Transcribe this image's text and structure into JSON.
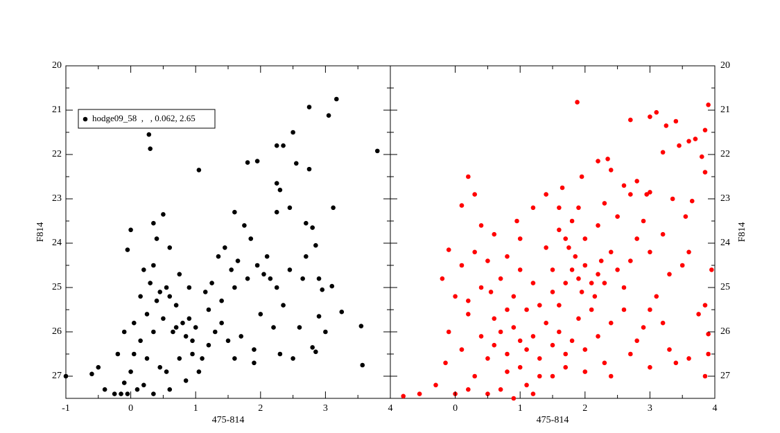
{
  "chart_data": [
    {
      "type": "scatter",
      "xlabel": "475-814",
      "ylabel": "F814",
      "yaxis_side": "left",
      "legend": "upper left",
      "xlim": [
        -1,
        4
      ],
      "ylim": [
        27.5,
        20
      ],
      "xticks": [
        -1,
        0,
        1,
        2,
        3,
        4
      ],
      "yticks": [
        20,
        21,
        22,
        23,
        24,
        25,
        26,
        27
      ],
      "series": [
        {
          "name": "hodge09_58  ,   , 0.062, 2.65",
          "color": "#000000",
          "x": [
            -1,
            0.28,
            0.3,
            1.05,
            2.75,
            3.05,
            3.17,
            3.8,
            2.5,
            2.25,
            2.35,
            2.55,
            1.8,
            1.95,
            2.75,
            2.25,
            2.3,
            3.12,
            2.45,
            2.25,
            1.6,
            0.5,
            0.35,
            0,
            -0.05,
            2.7,
            2.8,
            2.85,
            2.7,
            2.65,
            2.9,
            3.1,
            2.95,
            3.25,
            2.9,
            3,
            2.8,
            2.85,
            3.55,
            3.57,
            -0.6,
            -0.5,
            -0.4,
            -0.25,
            -0.15,
            -0.05,
            -0.1,
            0.1,
            0.2,
            0.35,
            0.6,
            0.2,
            0.3,
            0.45,
            0.55,
            0.4,
            0.6,
            0.25,
            0.5,
            0.7,
            0.8,
            0.9,
            1.0,
            0.85,
            0.65,
            0.35,
            0.15,
            0.05,
            0.25,
            0.45,
            0.55,
            0.75,
            0.95,
            1.1,
            1.2,
            1.3,
            1.4,
            1.5,
            1.7,
            1.9,
            1.35,
            1.45,
            1.55,
            1.65,
            1.75,
            1.85,
            1.95,
            2.05,
            2.15,
            2.25,
            2.35,
            2.1,
            1.8,
            1.6,
            1.4,
            1.2,
            2.0,
            2.2,
            1.9,
            2.3,
            0.35,
            0.4,
            0.6,
            0.75,
            0.9,
            0.15,
            0.05,
            -0.1,
            -0.2,
            0.0,
            2.5,
            2.6,
            2.45,
            1.6,
            1.05,
            0.85,
            1.15,
            1.25,
            0.7,
            0.95
          ],
          "y": [
            27,
            21.55,
            21.87,
            22.35,
            20.93,
            21.12,
            20.75,
            21.92,
            21.5,
            21.8,
            21.8,
            22.2,
            22.18,
            22.15,
            22.33,
            22.65,
            22.8,
            23.2,
            23.2,
            23.3,
            23.3,
            23.35,
            23.55,
            23.7,
            24.15,
            23.55,
            23.65,
            24.05,
            24.3,
            24.8,
            24.8,
            24.97,
            25.05,
            25.55,
            25.65,
            26,
            26.35,
            26.45,
            25.87,
            26.75,
            26.95,
            26.8,
            27.3,
            27.4,
            27.4,
            27.4,
            27.15,
            27.3,
            27.2,
            27.4,
            27.3,
            24.6,
            24.9,
            25.1,
            25.0,
            25.3,
            25.2,
            25.6,
            25.7,
            25.9,
            25.8,
            25.7,
            25.9,
            26.1,
            26.0,
            26.0,
            26.2,
            26.5,
            26.6,
            26.8,
            26.9,
            26.6,
            26.5,
            26.6,
            26.3,
            26.0,
            25.8,
            26.2,
            26.1,
            26.4,
            24.3,
            24.1,
            24.6,
            24.4,
            23.6,
            23.9,
            24.5,
            24.7,
            24.8,
            25.0,
            25.4,
            24.3,
            24.8,
            25.0,
            25.3,
            25.5,
            25.6,
            25.9,
            26.7,
            26.5,
            24.5,
            23.9,
            24.1,
            24.7,
            25.0,
            25.2,
            25.8,
            26.0,
            26.5,
            26.9,
            26.6,
            25.9,
            24.6,
            26.6,
            26.9,
            27.1,
            25.1,
            24.9,
            25.4,
            26.2
          ]
        }
      ]
    },
    {
      "type": "scatter",
      "xlabel": "475-814",
      "ylabel": "F814",
      "yaxis_side": "right",
      "xlim": [
        -1,
        4
      ],
      "ylim": [
        27.5,
        20
      ],
      "xticks": [
        0,
        1,
        2,
        3,
        4
      ],
      "yticks": [
        20,
        21,
        22,
        23,
        24,
        25,
        26,
        27
      ],
      "series": [
        {
          "color": "#ff0000",
          "x": [
            1.88,
            3.0,
            3.1,
            3.25,
            3.4,
            3.9,
            3.85,
            3.7,
            3.6,
            2.7,
            3.45,
            3.2,
            3.85,
            3.8,
            2.2,
            2.35,
            2.4,
            1.95,
            2.6,
            2.8,
            0.2,
            0.3,
            0.1,
            1.2,
            0.95,
            1.65,
            3.0,
            3.55,
            3.65,
            3.35,
            -0.55,
            -0.8,
            -0.3,
            -0.15,
            0.0,
            0.2,
            3.9,
            3.9,
            3.85,
            3.95,
            3.75,
            3.85,
            3.6,
            3.5,
            3.4,
            3.6,
            3.3,
            3.0,
            2.7,
            2.4,
            0.6,
            0.8,
            1.0,
            1.1,
            1.2,
            0.9,
            0.7,
            1.3,
            1.0,
            0.8,
            0.5,
            0.4,
            0.6,
            1.4,
            1.5,
            1.6,
            1.7,
            1.3,
            1.1,
            0.7,
            0.3,
            0.1,
            -0.1,
            0.2,
            0.0,
            -0.2,
            0.1,
            0.3,
            -0.1,
            0.5,
            0.7,
            0.9,
            1.1,
            1.3,
            1.2,
            1.0,
            0.8,
            1.4,
            1.5,
            1.7,
            1.8,
            1.9,
            2.0,
            2.1,
            2.2,
            2.3,
            1.85,
            1.95,
            2.15,
            2.25,
            1.75,
            1.6,
            1.8,
            2.0,
            2.2,
            1.9,
            1.7,
            2.4,
            2.5,
            2.6,
            2.7,
            2.8,
            2.9,
            3.0,
            2.5,
            2.3,
            2.6,
            2.9,
            3.1,
            3.2,
            2.4,
            2.2,
            2.0,
            1.8,
            1.9,
            2.1,
            1.6,
            1.5,
            2.3,
            2.0,
            1.2,
            0.9,
            0.5,
            1.5,
            1.7,
            0.4,
            0.2,
            0.6,
            0.4,
            1.0,
            2.8,
            3.0,
            3.3,
            3.2,
            2.95,
            2.7,
            1.4,
            1.6,
            0.8,
            0.55
          ],
          "y": [
            20.82,
            21.15,
            21.05,
            21.35,
            21.25,
            20.88,
            21.45,
            21.65,
            21.7,
            21.22,
            21.8,
            21.95,
            22.4,
            22.05,
            22.15,
            22.1,
            22.35,
            22.5,
            22.7,
            22.6,
            22.5,
            22.9,
            23.15,
            23.2,
            23.5,
            22.75,
            22.85,
            23.4,
            23.05,
            23.0,
            27.4,
            27.45,
            27.2,
            26.7,
            27.4,
            27.3,
            26.05,
            26.5,
            27.0,
            24.6,
            25.6,
            25.4,
            24.2,
            24.5,
            26.7,
            26.6,
            26.4,
            26.8,
            26.5,
            27.0,
            26.3,
            26.5,
            26.2,
            26.4,
            26.1,
            25.9,
            26.0,
            26.6,
            26.8,
            26.9,
            26.6,
            26.1,
            25.7,
            25.8,
            26.3,
            26.0,
            26.5,
            27.0,
            27.2,
            27.3,
            27.0,
            26.4,
            26.0,
            25.6,
            25.2,
            24.8,
            24.5,
            24.2,
            24.15,
            24.4,
            24.8,
            25.2,
            25.5,
            25.4,
            24.9,
            24.6,
            24.3,
            24.1,
            24.6,
            24.9,
            24.6,
            24.8,
            24.5,
            24.9,
            24.7,
            24.9,
            24.3,
            25.1,
            25.2,
            24.4,
            24.1,
            23.7,
            23.5,
            23.9,
            23.6,
            23.2,
            23.9,
            24.2,
            24.6,
            25.0,
            24.4,
            23.9,
            23.5,
            24.2,
            23.4,
            23.1,
            25.5,
            25.9,
            25.2,
            25.8,
            25.8,
            26.1,
            26.4,
            26.2,
            25.7,
            25.5,
            25.4,
            25.1,
            26.7,
            26.9,
            27.4,
            27.5,
            27.4,
            27.0,
            26.8,
            25.0,
            25.3,
            23.8,
            23.6,
            23.9,
            26.2,
            25.5,
            24.7,
            23.8,
            22.9,
            22.9,
            22.9,
            23.2,
            25.5,
            25.1
          ]
        }
      ]
    }
  ]
}
